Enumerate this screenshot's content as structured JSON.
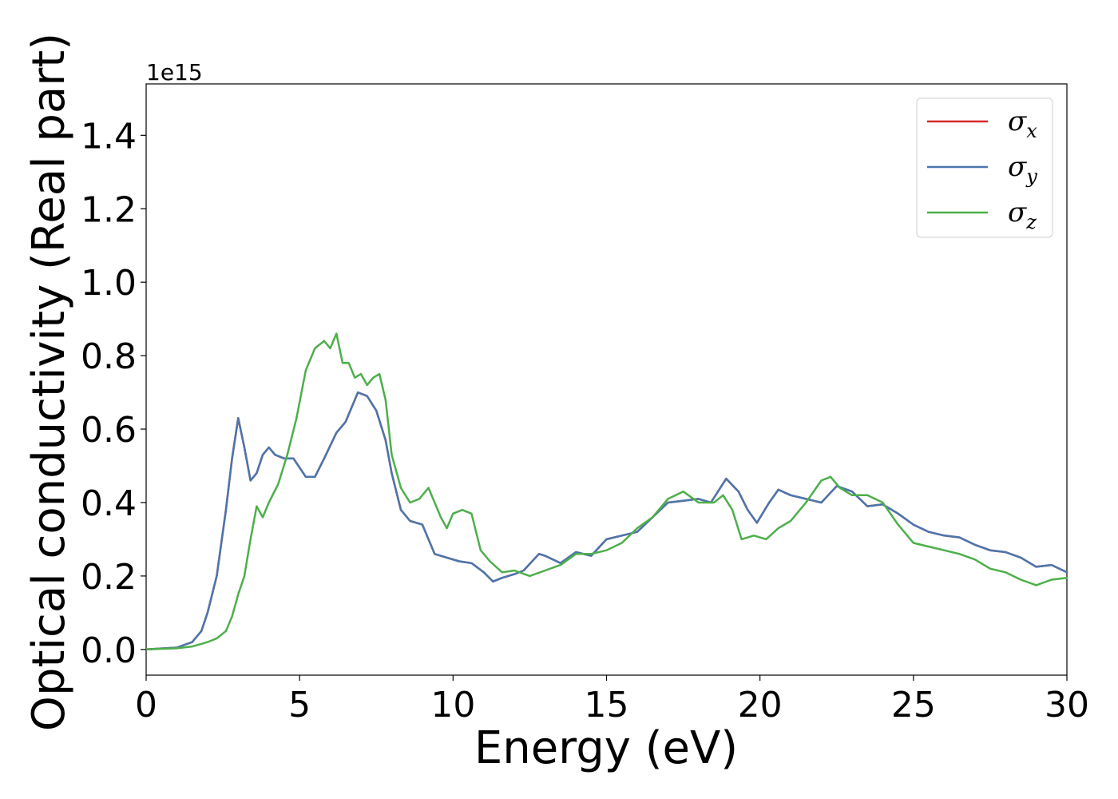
{
  "chart_data": {
    "type": "line",
    "xlabel": "Energy (eV)",
    "ylabel": "Optical conductivity (Real part)",
    "y_offset_label": "1e15",
    "xlim": [
      0,
      30
    ],
    "ylim": [
      -0.07,
      1.54
    ],
    "x_ticks": [
      0,
      5,
      10,
      15,
      20,
      25,
      30
    ],
    "x_tick_labels": [
      "0",
      "5",
      "10",
      "15",
      "20",
      "25",
      "30"
    ],
    "y_ticks": [
      0.0,
      0.2,
      0.4,
      0.6,
      0.8,
      1.0,
      1.2,
      1.4
    ],
    "y_tick_labels": [
      "0.0",
      "0.2",
      "0.4",
      "0.6",
      "0.8",
      "1.0",
      "1.2",
      "1.4"
    ],
    "grid": false,
    "legend_position": "top-right",
    "series": [
      {
        "name": "σx",
        "base": "σ",
        "sub": "x",
        "color": "#d62728",
        "x": [
          0,
          1,
          1.5,
          1.8,
          2,
          2.3,
          2.6,
          2.8,
          3,
          3.2,
          3.4,
          3.6,
          3.8,
          4,
          4.2,
          4.5,
          4.8,
          5.2,
          5.5,
          5.8,
          6.2,
          6.5,
          6.7,
          6.9,
          7.2,
          7.5,
          7.8,
          8,
          8.3,
          8.6,
          9,
          9.4,
          9.8,
          10.2,
          10.6,
          11,
          11.3,
          11.6,
          12,
          12.3,
          12.8,
          13,
          13.5,
          14,
          14.5,
          15,
          15.5,
          16,
          16.5,
          17,
          17.5,
          18,
          18.4,
          18.9,
          19.3,
          19.6,
          19.9,
          20.3,
          20.6,
          21,
          21.5,
          22,
          22.5,
          23,
          23.5,
          24,
          24.5,
          25,
          25.5,
          26,
          26.5,
          27,
          27.5,
          28,
          28.5,
          29,
          29.5,
          30
        ],
        "y": [
          0,
          0.005,
          0.02,
          0.05,
          0.1,
          0.2,
          0.38,
          0.52,
          0.63,
          0.55,
          0.46,
          0.48,
          0.53,
          0.55,
          0.53,
          0.52,
          0.52,
          0.47,
          0.47,
          0.52,
          0.59,
          0.62,
          0.66,
          0.7,
          0.69,
          0.65,
          0.57,
          0.48,
          0.38,
          0.35,
          0.34,
          0.26,
          0.25,
          0.24,
          0.235,
          0.21,
          0.185,
          0.195,
          0.205,
          0.215,
          0.26,
          0.255,
          0.235,
          0.265,
          0.255,
          0.3,
          0.31,
          0.32,
          0.36,
          0.4,
          0.405,
          0.41,
          0.4,
          0.465,
          0.43,
          0.38,
          0.345,
          0.4,
          0.435,
          0.42,
          0.41,
          0.4,
          0.445,
          0.43,
          0.39,
          0.395,
          0.37,
          0.34,
          0.32,
          0.31,
          0.305,
          0.285,
          0.27,
          0.265,
          0.25,
          0.225,
          0.23,
          0.21
        ]
      },
      {
        "name": "σy",
        "base": "σ",
        "sub": "y",
        "color": "#4a76ad",
        "x": [
          0,
          1,
          1.5,
          1.8,
          2,
          2.3,
          2.6,
          2.8,
          3,
          3.2,
          3.4,
          3.6,
          3.8,
          4,
          4.2,
          4.5,
          4.8,
          5.2,
          5.5,
          5.8,
          6.2,
          6.5,
          6.7,
          6.9,
          7.2,
          7.5,
          7.8,
          8,
          8.3,
          8.6,
          9,
          9.4,
          9.8,
          10.2,
          10.6,
          11,
          11.3,
          11.6,
          12,
          12.3,
          12.8,
          13,
          13.5,
          14,
          14.5,
          15,
          15.5,
          16,
          16.5,
          17,
          17.5,
          18,
          18.4,
          18.9,
          19.3,
          19.6,
          19.9,
          20.3,
          20.6,
          21,
          21.5,
          22,
          22.5,
          23,
          23.5,
          24,
          24.5,
          25,
          25.5,
          26,
          26.5,
          27,
          27.5,
          28,
          28.5,
          29,
          29.5,
          30
        ],
        "y": [
          0,
          0.005,
          0.02,
          0.05,
          0.1,
          0.2,
          0.38,
          0.52,
          0.63,
          0.55,
          0.46,
          0.48,
          0.53,
          0.55,
          0.53,
          0.52,
          0.52,
          0.47,
          0.47,
          0.52,
          0.59,
          0.62,
          0.66,
          0.7,
          0.69,
          0.65,
          0.57,
          0.48,
          0.38,
          0.35,
          0.34,
          0.26,
          0.25,
          0.24,
          0.235,
          0.21,
          0.185,
          0.195,
          0.205,
          0.215,
          0.26,
          0.255,
          0.235,
          0.265,
          0.255,
          0.3,
          0.31,
          0.32,
          0.36,
          0.4,
          0.405,
          0.41,
          0.4,
          0.465,
          0.43,
          0.38,
          0.345,
          0.4,
          0.435,
          0.42,
          0.41,
          0.4,
          0.445,
          0.43,
          0.39,
          0.395,
          0.37,
          0.34,
          0.32,
          0.31,
          0.305,
          0.285,
          0.27,
          0.265,
          0.25,
          0.225,
          0.23,
          0.21
        ]
      },
      {
        "name": "σz",
        "base": "σ",
        "sub": "z",
        "color": "#4daf4a",
        "x": [
          0,
          1,
          1.5,
          1.8,
          2,
          2.3,
          2.6,
          2.8,
          3,
          3.2,
          3.4,
          3.6,
          3.8,
          4,
          4.3,
          4.6,
          4.9,
          5.2,
          5.5,
          5.8,
          6,
          6.2,
          6.4,
          6.6,
          6.8,
          7,
          7.2,
          7.4,
          7.6,
          7.8,
          8,
          8.3,
          8.6,
          8.9,
          9.2,
          9.6,
          9.8,
          10,
          10.3,
          10.6,
          10.9,
          11.2,
          11.6,
          12,
          12.5,
          13,
          13.5,
          14,
          14.5,
          15,
          15.5,
          16,
          16.5,
          17,
          17.5,
          18,
          18.5,
          18.8,
          19.1,
          19.4,
          19.8,
          20.2,
          20.6,
          21,
          21.5,
          22,
          22.3,
          22.6,
          23,
          23.5,
          24,
          24.5,
          25,
          25.5,
          26,
          26.5,
          27,
          27.5,
          28,
          28.5,
          29,
          29.5,
          30
        ],
        "y": [
          0,
          0.003,
          0.008,
          0.015,
          0.02,
          0.03,
          0.05,
          0.09,
          0.15,
          0.2,
          0.3,
          0.39,
          0.36,
          0.4,
          0.45,
          0.53,
          0.63,
          0.76,
          0.82,
          0.84,
          0.82,
          0.86,
          0.78,
          0.78,
          0.74,
          0.75,
          0.72,
          0.74,
          0.75,
          0.68,
          0.53,
          0.44,
          0.4,
          0.41,
          0.44,
          0.36,
          0.33,
          0.37,
          0.38,
          0.37,
          0.27,
          0.24,
          0.21,
          0.215,
          0.2,
          0.215,
          0.23,
          0.26,
          0.26,
          0.27,
          0.29,
          0.33,
          0.36,
          0.41,
          0.43,
          0.4,
          0.4,
          0.42,
          0.38,
          0.3,
          0.31,
          0.3,
          0.33,
          0.35,
          0.4,
          0.46,
          0.47,
          0.44,
          0.42,
          0.42,
          0.4,
          0.34,
          0.29,
          0.28,
          0.27,
          0.26,
          0.245,
          0.22,
          0.21,
          0.19,
          0.175,
          0.19,
          0.195
        ]
      }
    ]
  }
}
